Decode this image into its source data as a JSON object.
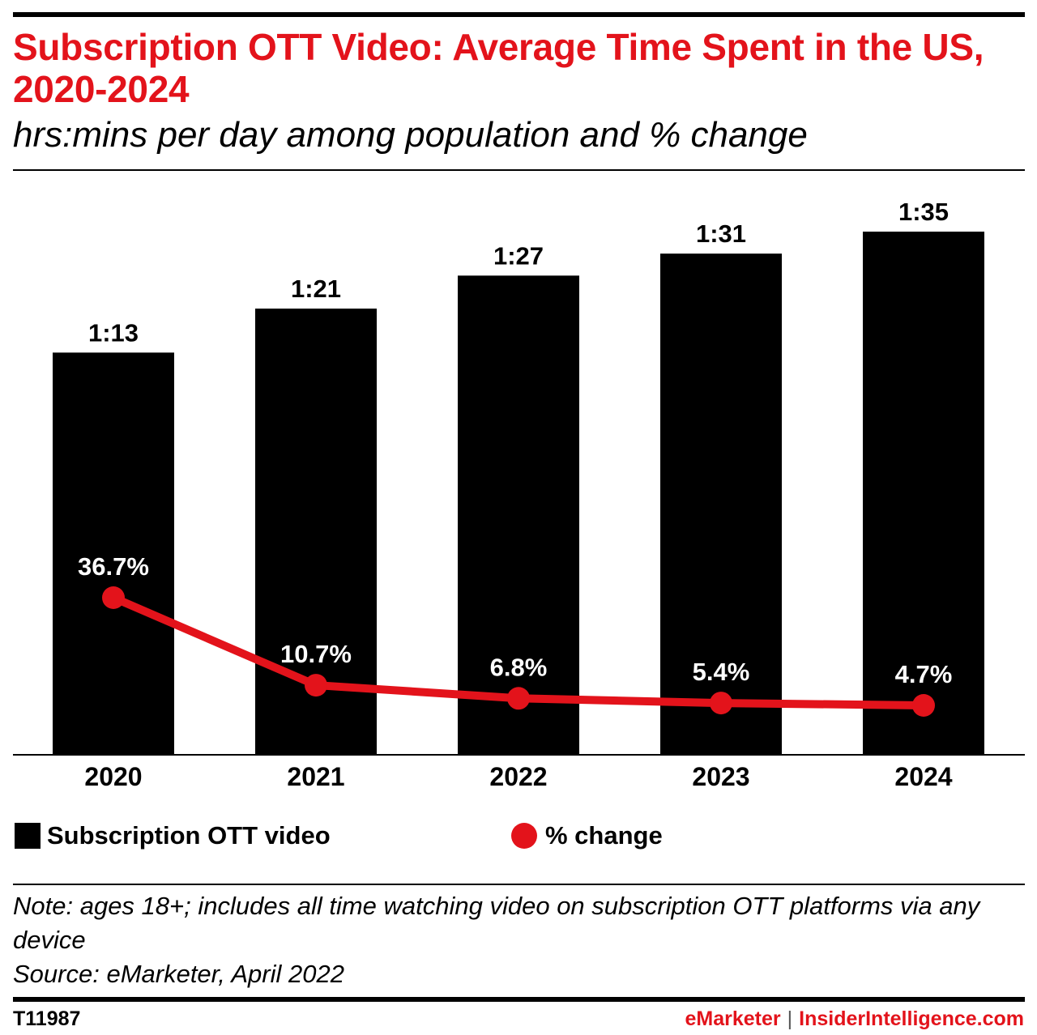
{
  "header": {
    "title": "Subscription OTT Video: Average Time Spent in the US, 2020-2024",
    "subtitle": "hrs:mins per day among population and % change"
  },
  "legend": {
    "bar_label": "Subscription OTT video",
    "line_label": "% change"
  },
  "footer": {
    "note": "Note: ages 18+; includes all time watching video on subscription OTT platforms via any device",
    "source": "Source: eMarketer, April 2022",
    "chart_id": "T11987",
    "brand_1": "eMarketer",
    "separator": "|",
    "brand_2": "InsiderIntelligence.com"
  },
  "colors": {
    "bar": "#000000",
    "line": "#e3131b",
    "title": "#e3131b"
  },
  "chart_data": {
    "type": "bar",
    "categories": [
      "2020",
      "2021",
      "2022",
      "2023",
      "2024"
    ],
    "series": [
      {
        "name": "Subscription OTT video",
        "type": "bar",
        "values_minutes": [
          73,
          81,
          87,
          91,
          95
        ],
        "labels": [
          "1:13",
          "1:21",
          "1:27",
          "1:31",
          "1:35"
        ]
      },
      {
        "name": "% change",
        "type": "line",
        "values": [
          36.7,
          10.7,
          6.8,
          5.4,
          4.7
        ],
        "labels": [
          "36.7%",
          "10.7%",
          "6.8%",
          "5.4%",
          "4.7%"
        ]
      }
    ],
    "title": "Subscription OTT Video: Average Time Spent in the US, 2020-2024",
    "subtitle": "hrs:mins per day among population and % change",
    "grid": false,
    "legend_position": "bottom"
  }
}
